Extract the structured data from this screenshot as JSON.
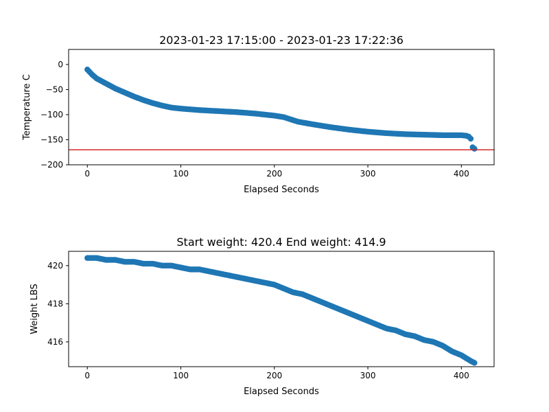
{
  "chart_data": [
    {
      "type": "scatter",
      "title": "2023-01-23 17:15:00 - 2023-01-23 17:22:36",
      "xlabel": "Elapsed Seconds",
      "ylabel": "Temperature C",
      "xlim": [
        -20,
        435
      ],
      "ylim": [
        -200,
        30
      ],
      "xticks": [
        0,
        100,
        200,
        300,
        400
      ],
      "yticks": [
        0,
        -50,
        -100,
        -150,
        -200
      ],
      "color": "#1f77b4",
      "reference_line": {
        "y": -170,
        "color": "#d62728"
      },
      "x": [
        0,
        5,
        10,
        20,
        30,
        40,
        50,
        60,
        70,
        80,
        90,
        100,
        120,
        140,
        160,
        180,
        200,
        210,
        215,
        220,
        225,
        240,
        260,
        280,
        300,
        320,
        340,
        360,
        380,
        400,
        405,
        408,
        410,
        412,
        414
      ],
      "y": [
        -10,
        -20,
        -28,
        -38,
        -48,
        -56,
        -64,
        -71,
        -77,
        -82,
        -86,
        -88,
        -91,
        -93,
        -95,
        -98,
        -102,
        -105,
        -108,
        -111,
        -114,
        -119,
        -125,
        -130,
        -134,
        -137,
        -139,
        -140,
        -141,
        -141,
        -142,
        -144,
        -148,
        -165,
        -168
      ]
    },
    {
      "type": "scatter",
      "title": "Start weight: 420.4 End weight: 414.9",
      "xlabel": "Elapsed Seconds",
      "ylabel": "Weight LBS",
      "xlim": [
        -20,
        435
      ],
      "ylim": [
        414.7,
        420.75
      ],
      "xticks": [
        0,
        100,
        200,
        300,
        400
      ],
      "yticks": [
        416,
        418,
        420
      ],
      "color": "#1f77b4",
      "x": [
        0,
        5,
        10,
        20,
        30,
        40,
        50,
        60,
        70,
        80,
        90,
        100,
        110,
        120,
        130,
        140,
        150,
        160,
        170,
        180,
        190,
        200,
        210,
        220,
        230,
        240,
        250,
        260,
        270,
        280,
        290,
        300,
        310,
        320,
        330,
        340,
        350,
        360,
        370,
        380,
        390,
        400,
        410,
        414
      ],
      "y": [
        420.4,
        420.4,
        420.4,
        420.3,
        420.3,
        420.2,
        420.2,
        420.1,
        420.1,
        420.0,
        420.0,
        419.9,
        419.8,
        419.8,
        419.7,
        419.6,
        419.5,
        419.4,
        419.3,
        419.2,
        419.1,
        419.0,
        418.8,
        418.6,
        418.5,
        418.3,
        418.1,
        417.9,
        417.7,
        417.5,
        417.3,
        417.1,
        416.9,
        416.7,
        416.6,
        416.4,
        416.3,
        416.1,
        416.0,
        415.8,
        415.5,
        415.3,
        415.0,
        414.9
      ]
    }
  ]
}
